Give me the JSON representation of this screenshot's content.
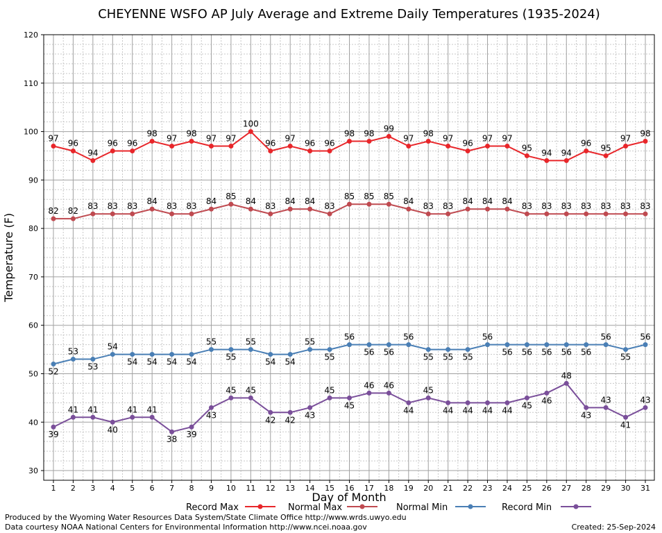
{
  "chart_data": {
    "type": "line",
    "title": "CHEYENNE WSFO AP July Average and Extreme Daily Temperatures (1935-2024)",
    "xlabel": "Day of Month",
    "ylabel": "Temperature (F)",
    "ylim": [
      28,
      120
    ],
    "yticks": [
      30,
      40,
      50,
      60,
      70,
      80,
      90,
      100,
      110,
      120
    ],
    "grid": true,
    "legend_position": "bottom",
    "x": [
      1,
      2,
      3,
      4,
      5,
      6,
      7,
      8,
      9,
      10,
      11,
      12,
      13,
      14,
      15,
      16,
      17,
      18,
      19,
      20,
      21,
      22,
      23,
      24,
      25,
      26,
      27,
      28,
      29,
      30,
      31
    ],
    "series": [
      {
        "name": "Record Max",
        "color": "#e8262a",
        "label_position": "above",
        "values": [
          97,
          96,
          94,
          96,
          96,
          98,
          97,
          98,
          97,
          97,
          100,
          96,
          97,
          96,
          96,
          98,
          98,
          99,
          97,
          98,
          97,
          96,
          97,
          97,
          95,
          94,
          94,
          96,
          95,
          97,
          98
        ]
      },
      {
        "name": "Normal Max",
        "color": "#bf4a50",
        "label_position": "above",
        "values": [
          82,
          82,
          83,
          83,
          83,
          84,
          83,
          83,
          84,
          85,
          84,
          83,
          84,
          84,
          83,
          85,
          85,
          85,
          84,
          83,
          83,
          84,
          84,
          84,
          83,
          83,
          83,
          83,
          83,
          83,
          83
        ]
      },
      {
        "name": "Normal Min",
        "color": "#4a7fb5",
        "label_position": "mixed",
        "values": [
          52,
          53,
          53,
          54,
          54,
          54,
          54,
          54,
          55,
          55,
          55,
          54,
          54,
          55,
          55,
          56,
          56,
          56,
          56,
          55,
          55,
          55,
          56,
          56,
          56,
          56,
          56,
          56,
          56,
          55,
          56
        ]
      },
      {
        "name": "Record Min",
        "color": "#7a4f9a",
        "label_position": "mixed",
        "values": [
          39,
          41,
          41,
          40,
          41,
          41,
          38,
          39,
          43,
          45,
          45,
          42,
          42,
          43,
          45,
          45,
          46,
          46,
          44,
          45,
          44,
          44,
          44,
          44,
          45,
          46,
          48,
          43,
          43,
          41,
          43
        ]
      }
    ]
  },
  "footer": {
    "produced_by": "Produced by the Wyoming Water Resources Data System/State Climate Office http://www.wrds.uwyo.edu",
    "courtesy": "Data courtesy NOAA National Centers for Environmental Information http://www.ncei.noaa.gov",
    "created": "Created:  25-Sep-2024"
  }
}
